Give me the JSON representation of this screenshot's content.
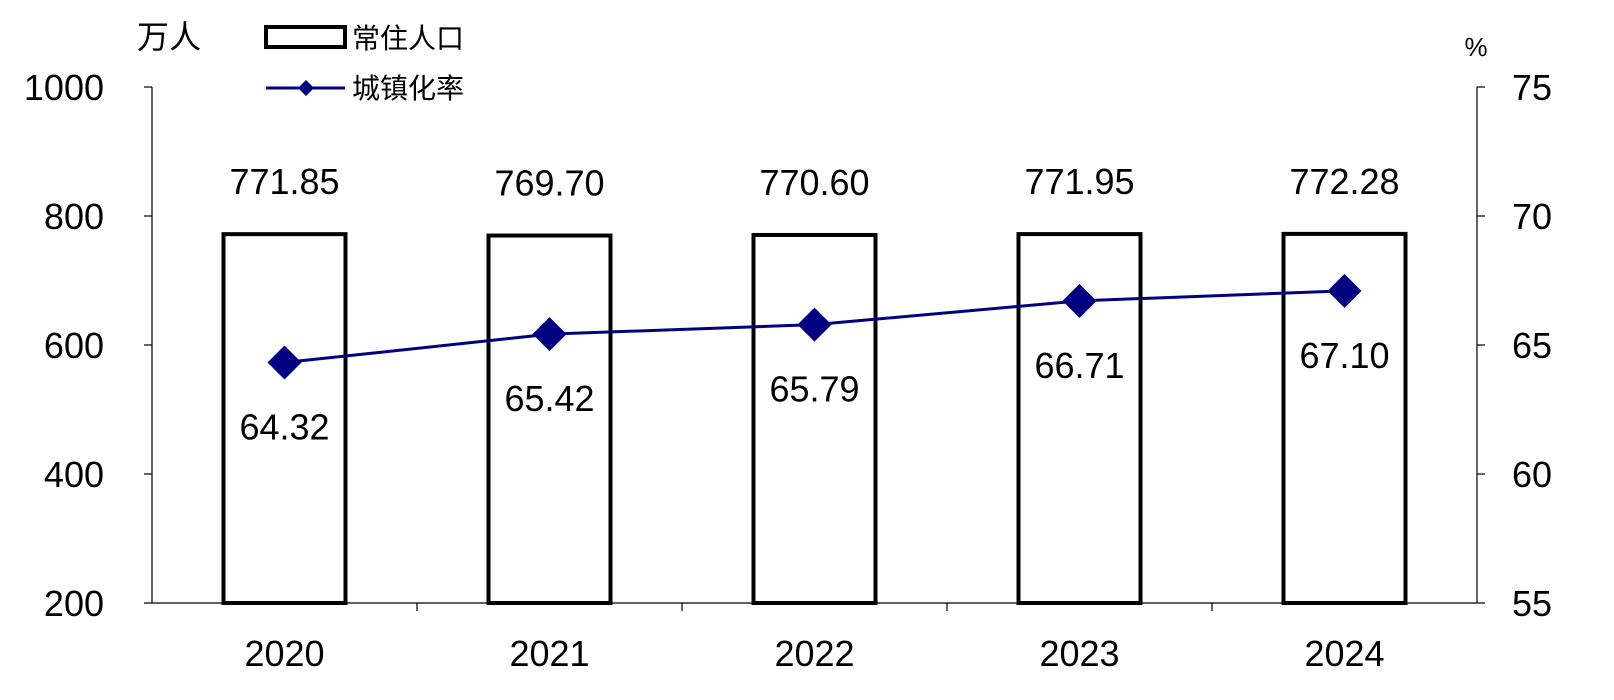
{
  "chart_data": {
    "type": "bar+line",
    "categories": [
      "2020",
      "2021",
      "2022",
      "2023",
      "2024"
    ],
    "series": [
      {
        "name": "常住人口",
        "type": "bar",
        "axis": "left",
        "values": [
          771.85,
          769.7,
          770.6,
          771.95,
          772.28
        ],
        "labels": [
          "771.85",
          "769.70",
          "770.60",
          "771.95",
          "772.28"
        ],
        "color": "#000000",
        "fill": "#ffffff"
      },
      {
        "name": "城镇化率",
        "type": "line",
        "axis": "right",
        "marker": "diamond",
        "values": [
          64.32,
          65.42,
          65.79,
          66.71,
          67.1
        ],
        "labels": [
          "64.32",
          "65.42",
          "65.79",
          "66.71",
          "67.10"
        ],
        "color": "#000080"
      }
    ],
    "y_left": {
      "unit": "万人",
      "ylim": [
        200,
        1000
      ],
      "ticks": [
        200,
        400,
        600,
        800,
        1000
      ],
      "tick_labels": [
        "200",
        "400",
        "600",
        "800",
        "1000"
      ]
    },
    "y_right": {
      "unit": "%",
      "ylim": [
        55,
        75
      ],
      "ticks": [
        55,
        60,
        65,
        70,
        75
      ],
      "tick_labels": [
        "55",
        "60",
        "65",
        "70",
        "75"
      ]
    },
    "legend_position": "top-left",
    "grid": false
  }
}
